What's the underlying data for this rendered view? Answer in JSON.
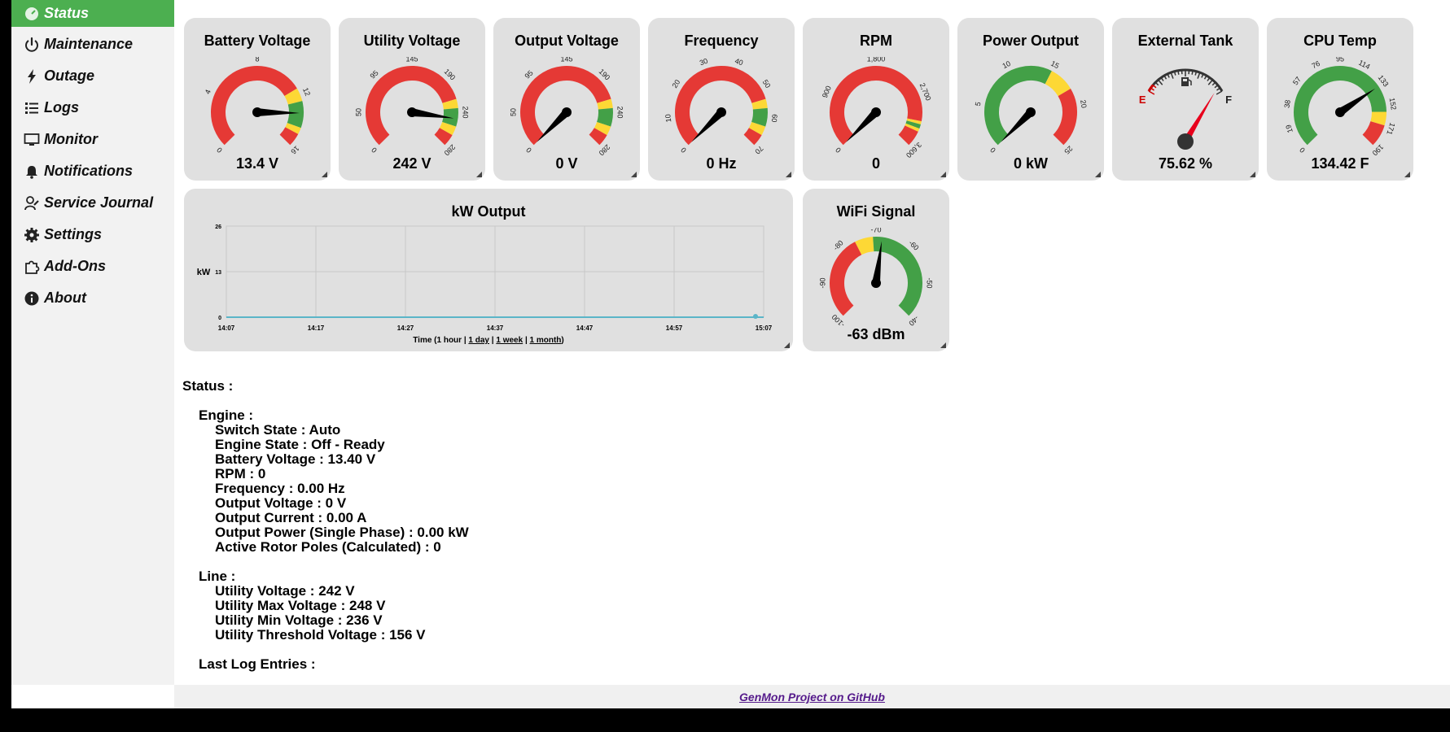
{
  "sidebar": {
    "items": [
      {
        "label": "Status",
        "icon": "dashboard-icon",
        "active": true
      },
      {
        "label": "Maintenance",
        "icon": "power-icon"
      },
      {
        "label": "Outage",
        "icon": "lightning-icon"
      },
      {
        "label": "Logs",
        "icon": "list-icon"
      },
      {
        "label": "Monitor",
        "icon": "monitor-icon"
      },
      {
        "label": "Notifications",
        "icon": "bell-icon"
      },
      {
        "label": "Service Journal",
        "icon": "journal-icon"
      },
      {
        "label": "Settings",
        "icon": "gear-icon"
      },
      {
        "label": "Add-Ons",
        "icon": "puzzle-icon"
      },
      {
        "label": "About",
        "icon": "info-icon"
      }
    ]
  },
  "gauges": [
    {
      "title": "Battery Voltage",
      "value": "13.4 V",
      "min": 0,
      "max": 16,
      "needle": 13.4,
      "ticks": [
        "0",
        "4",
        "8",
        "12",
        "16"
      ],
      "bands": [
        {
          "from": 0,
          "to": 11.5,
          "color": "#e53935"
        },
        {
          "from": 11.5,
          "to": 12.5,
          "color": "#fdd835"
        },
        {
          "from": 12.5,
          "to": 14.5,
          "color": "#43a047"
        },
        {
          "from": 14.5,
          "to": 15,
          "color": "#fdd835"
        },
        {
          "from": 15,
          "to": 16,
          "color": "#e53935"
        }
      ]
    },
    {
      "title": "Utility Voltage",
      "value": "242 V",
      "min": 0,
      "max": 280,
      "needle": 242,
      "ticks": [
        "0",
        "50",
        "95",
        "145",
        "190",
        "240",
        "280"
      ],
      "bands": [
        {
          "from": 0,
          "to": 216,
          "color": "#e53935"
        },
        {
          "from": 216,
          "to": 228,
          "color": "#fdd835"
        },
        {
          "from": 228,
          "to": 252,
          "color": "#43a047"
        },
        {
          "from": 252,
          "to": 264,
          "color": "#fdd835"
        },
        {
          "from": 264,
          "to": 280,
          "color": "#e53935"
        }
      ]
    },
    {
      "title": "Output Voltage",
      "value": "0 V",
      "min": 0,
      "max": 280,
      "needle": 0,
      "ticks": [
        "0",
        "50",
        "95",
        "145",
        "190",
        "240",
        "280"
      ],
      "bands": [
        {
          "from": 0,
          "to": 216,
          "color": "#e53935"
        },
        {
          "from": 216,
          "to": 228,
          "color": "#fdd835"
        },
        {
          "from": 228,
          "to": 252,
          "color": "#43a047"
        },
        {
          "from": 252,
          "to": 264,
          "color": "#fdd835"
        },
        {
          "from": 264,
          "to": 280,
          "color": "#e53935"
        }
      ]
    },
    {
      "title": "Frequency",
      "value": "0 Hz",
      "min": 0,
      "max": 70,
      "needle": 0,
      "ticks": [
        "0",
        "10",
        "20",
        "30",
        "40",
        "50",
        "60",
        "70"
      ],
      "bands": [
        {
          "from": 0,
          "to": 54,
          "color": "#e53935"
        },
        {
          "from": 54,
          "to": 57,
          "color": "#fdd835"
        },
        {
          "from": 57,
          "to": 63,
          "color": "#43a047"
        },
        {
          "from": 63,
          "to": 66,
          "color": "#fdd835"
        },
        {
          "from": 66,
          "to": 70,
          "color": "#e53935"
        }
      ]
    },
    {
      "title": "RPM",
      "value": "0",
      "min": 0,
      "max": 4000,
      "needle": 0,
      "ticks": [
        "0",
        "900",
        "1,800",
        "2,700",
        "3,600"
      ],
      "bands": [
        {
          "from": 0,
          "to": 3500,
          "color": "#e53935"
        },
        {
          "from": 3500,
          "to": 3560,
          "color": "#fdd835"
        },
        {
          "from": 3560,
          "to": 3640,
          "color": "#43a047"
        },
        {
          "from": 3640,
          "to": 3700,
          "color": "#fdd835"
        },
        {
          "from": 3700,
          "to": 4000,
          "color": "#e53935"
        }
      ]
    },
    {
      "title": "Power Output",
      "value": "0 kW",
      "min": 0,
      "max": 25,
      "needle": 0,
      "ticks": [
        "0",
        "5",
        "10",
        "15",
        "20",
        "25"
      ],
      "bands": [
        {
          "from": 0,
          "to": 15,
          "color": "#43a047"
        },
        {
          "from": 15,
          "to": 18,
          "color": "#fdd835"
        },
        {
          "from": 18,
          "to": 25,
          "color": "#e53935"
        }
      ]
    },
    {
      "title": "External Tank",
      "value": "75.62 %",
      "type": "fuel",
      "needle": 75.62,
      "empty_label": "E",
      "full_label": "F"
    },
    {
      "title": "CPU Temp",
      "value": "134.42 F",
      "min": 0,
      "max": 190,
      "needle": 134.42,
      "ticks": [
        "0",
        "19",
        "38",
        "57",
        "76",
        "95",
        "114",
        "133",
        "152",
        "171",
        "190"
      ],
      "bands": [
        {
          "from": 0,
          "to": 158,
          "color": "#43a047"
        },
        {
          "from": 158,
          "to": 170,
          "color": "#fdd835"
        },
        {
          "from": 170,
          "to": 190,
          "color": "#e53935"
        }
      ]
    }
  ],
  "wifi": {
    "title": "WiFi Signal",
    "value": "-63 dBm",
    "min": -100,
    "max": -30,
    "needle": -63,
    "ticks": [
      "-100",
      "-90",
      "-80",
      "-70",
      "-60",
      "-50",
      "-40"
    ],
    "bands": [
      {
        "from": -100,
        "to": -72,
        "color": "#e53935"
      },
      {
        "from": -72,
        "to": -66,
        "color": "#fdd835"
      },
      {
        "from": -66,
        "to": -30,
        "color": "#43a047"
      }
    ]
  },
  "chart_data": {
    "type": "line",
    "title": "kW Output",
    "ylabel": "kW",
    "xlabel": "Time (1 hour | 1 day | 1 week | 1 month)",
    "x": [
      "14:07",
      "14:17",
      "14:27",
      "14:37",
      "14:47",
      "14:57",
      "15:07"
    ],
    "yticks": [
      "0",
      "13",
      "26"
    ],
    "ylim": [
      0,
      26
    ],
    "series": [
      {
        "values": [
          0,
          0,
          0,
          0,
          0,
          0,
          0
        ]
      }
    ],
    "grid": true,
    "line_color": "#5bb5c8"
  },
  "chart_footer": {
    "prefix": "Time (1 hour | ",
    "day": "1 day",
    "sep1": " | ",
    "week": "1 week",
    "sep2": " | ",
    "month": "1 month",
    "suffix": ")"
  },
  "status": {
    "heading": "Status :",
    "engine_title": "Engine :",
    "engine": [
      "Switch State : Auto",
      "Engine State : Off - Ready",
      "Battery Voltage : 13.40 V",
      "RPM : 0",
      "Frequency : 0.00 Hz",
      "Output Voltage : 0 V",
      "Output Current : 0.00 A",
      "Output Power (Single Phase) : 0.00 kW",
      "Active Rotor Poles (Calculated) : 0"
    ],
    "line_title": "Line :",
    "line": [
      "Utility Voltage : 242 V",
      "Utility Max Voltage : 248 V",
      "Utility Min Voltage : 236 V",
      "Utility Threshold Voltage : 156 V"
    ],
    "log_title": "Last Log Entries :"
  },
  "footer": {
    "link": "GenMon Project on GitHub"
  }
}
